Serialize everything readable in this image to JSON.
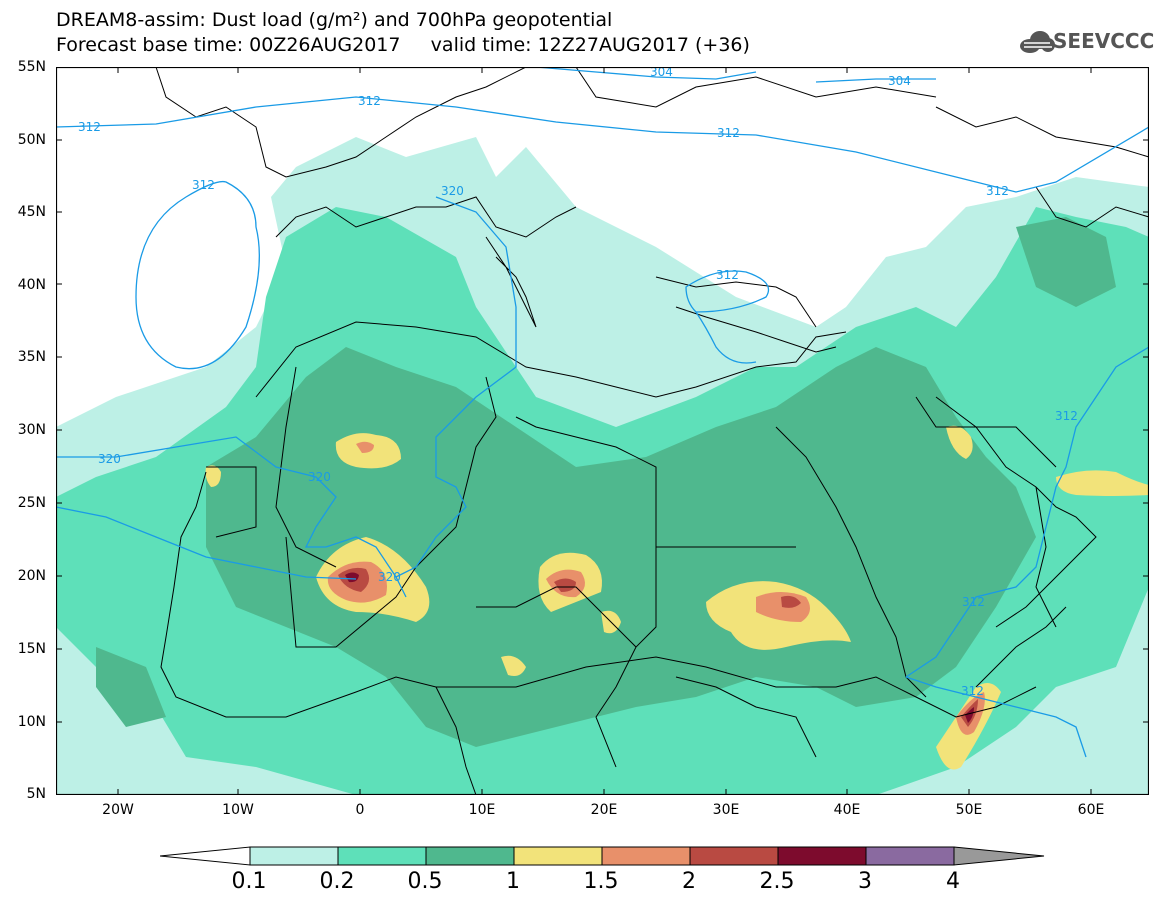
{
  "title": {
    "line1": "DREAM8-assim: Dust load (g/m²) and 700hPa geopotential",
    "line2": "Forecast base time: 00Z26AUG2017     valid time: 12Z27AUG2017 (+36)"
  },
  "logo": {
    "text": "SEEVCCC",
    "icon": "cloud-icon"
  },
  "map": {
    "lat_labels": [
      "55N",
      "50N",
      "45N",
      "40N",
      "35N",
      "30N",
      "25N",
      "20N",
      "15N",
      "10N",
      "5N"
    ],
    "lon_labels": [
      "20W",
      "10W",
      "0",
      "10E",
      "20E",
      "30E",
      "40E",
      "50E",
      "60E"
    ],
    "contour_labels": [
      "304",
      "304",
      "312",
      "312",
      "312",
      "312",
      "312",
      "320",
      "312",
      "312",
      "312",
      "320",
      "320",
      "320",
      "312"
    ],
    "background_color": "#ffffff",
    "geopotential_color": "#1a9be6"
  },
  "colorbar": {
    "tick_labels": [
      "0.1",
      "0.2",
      "0.5",
      "1",
      "1.5",
      "2",
      "2.5",
      "3",
      "4"
    ],
    "colors": [
      "#bdf0e6",
      "#5ee0b9",
      "#4fb88e",
      "#f2e37a",
      "#e8906a",
      "#b94a42",
      "#7d0b2d",
      "#8a6aa0",
      "#999999"
    ]
  }
}
